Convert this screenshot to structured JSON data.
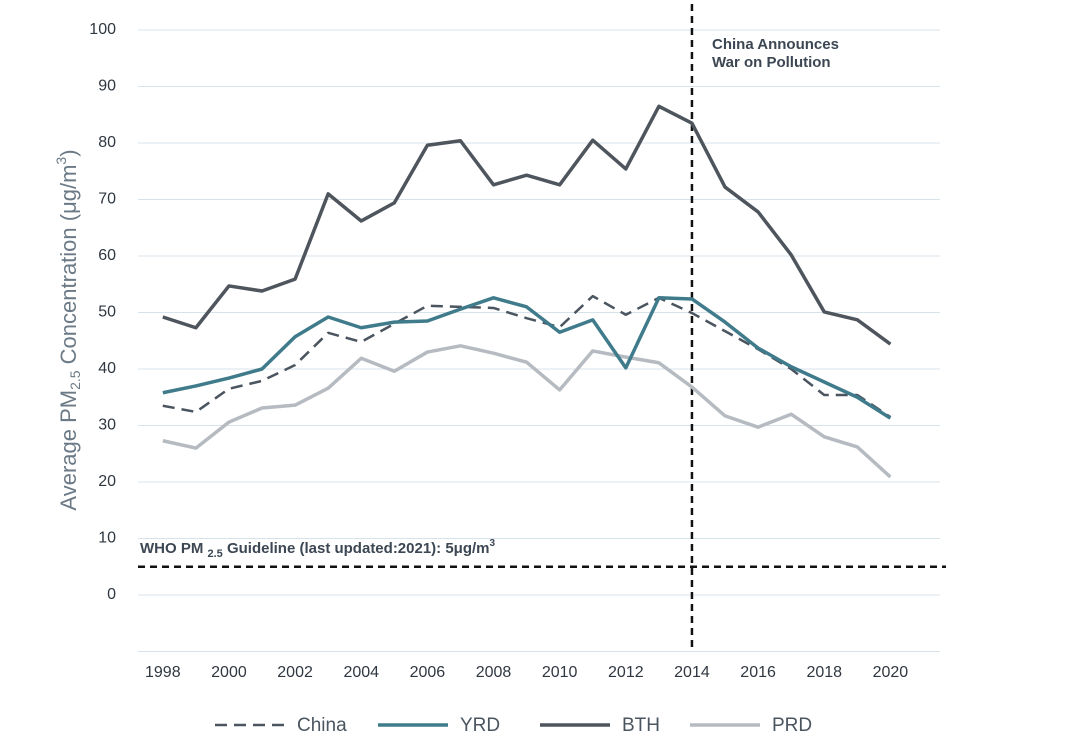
{
  "chart_data": {
    "type": "line",
    "y_label": [
      "Average PM",
      "2.5",
      " Concentration  (μg/m",
      "3",
      ")"
    ],
    "x": [
      1998,
      1999,
      2000,
      2001,
      2002,
      2003,
      2004,
      2005,
      2006,
      2007,
      2008,
      2009,
      2010,
      2011,
      2012,
      2013,
      2014,
      2015,
      2016,
      2017,
      2018,
      2019,
      2020
    ],
    "xlim": [
      1997.25,
      2021.5
    ],
    "xticks": [
      1998,
      2000,
      2002,
      2004,
      2006,
      2008,
      2010,
      2012,
      2014,
      2016,
      2018,
      2020
    ],
    "ylim": [
      -10,
      100
    ],
    "yticks": [
      0,
      10,
      20,
      30,
      40,
      50,
      60,
      70,
      80,
      90,
      100
    ],
    "grid": true,
    "series": [
      {
        "name": "China",
        "color": "#4b5560",
        "dash": "dashed",
        "values": [
          33.5,
          32.4,
          36.5,
          37.9,
          40.7,
          46.4,
          44.8,
          48,
          51.2,
          51,
          50.8,
          49,
          47.4,
          52.9,
          49.6,
          52.6,
          49.9,
          46.7,
          43.5,
          40,
          35.4,
          35.4,
          31.5
        ]
      },
      {
        "name": "YRD",
        "color": "#3f7b8b",
        "values": [
          35.8,
          37,
          38.4,
          40,
          45.7,
          49.2,
          47.3,
          48.3,
          48.5,
          50.6,
          52.6,
          51,
          46.5,
          48.7,
          40.2,
          52.6,
          52.4,
          48.3,
          43.7,
          40.4,
          37.7,
          35,
          31.3
        ]
      },
      {
        "name": "BTH",
        "color": "#4e555d",
        "values": [
          49.2,
          47.3,
          54.7,
          53.8,
          55.9,
          71,
          66.2,
          69.4,
          79.6,
          80.4,
          72.6,
          74.3,
          72.6,
          80.5,
          75.4,
          86.5,
          83.5,
          72.2,
          67.8,
          60.2,
          50.1,
          48.7,
          44.4
        ]
      },
      {
        "name": "PRD",
        "color": "#b5bbc0",
        "values": [
          27.3,
          26,
          30.6,
          33.1,
          33.6,
          36.6,
          41.9,
          39.6,
          43,
          44.1,
          42.8,
          41.2,
          36.3,
          43.2,
          42.1,
          41.1,
          36.8,
          31.7,
          29.7,
          32,
          28,
          26.2,
          20.9
        ]
      }
    ],
    "annotations": [
      {
        "x": 2014,
        "text": [
          "China Announces",
          "War on Pollution"
        ]
      },
      {
        "y": 5,
        "text": [
          "WHO PM ",
          "2.5",
          " Guideline (last updated:2021): 5μg/m",
          "3"
        ]
      }
    ]
  }
}
